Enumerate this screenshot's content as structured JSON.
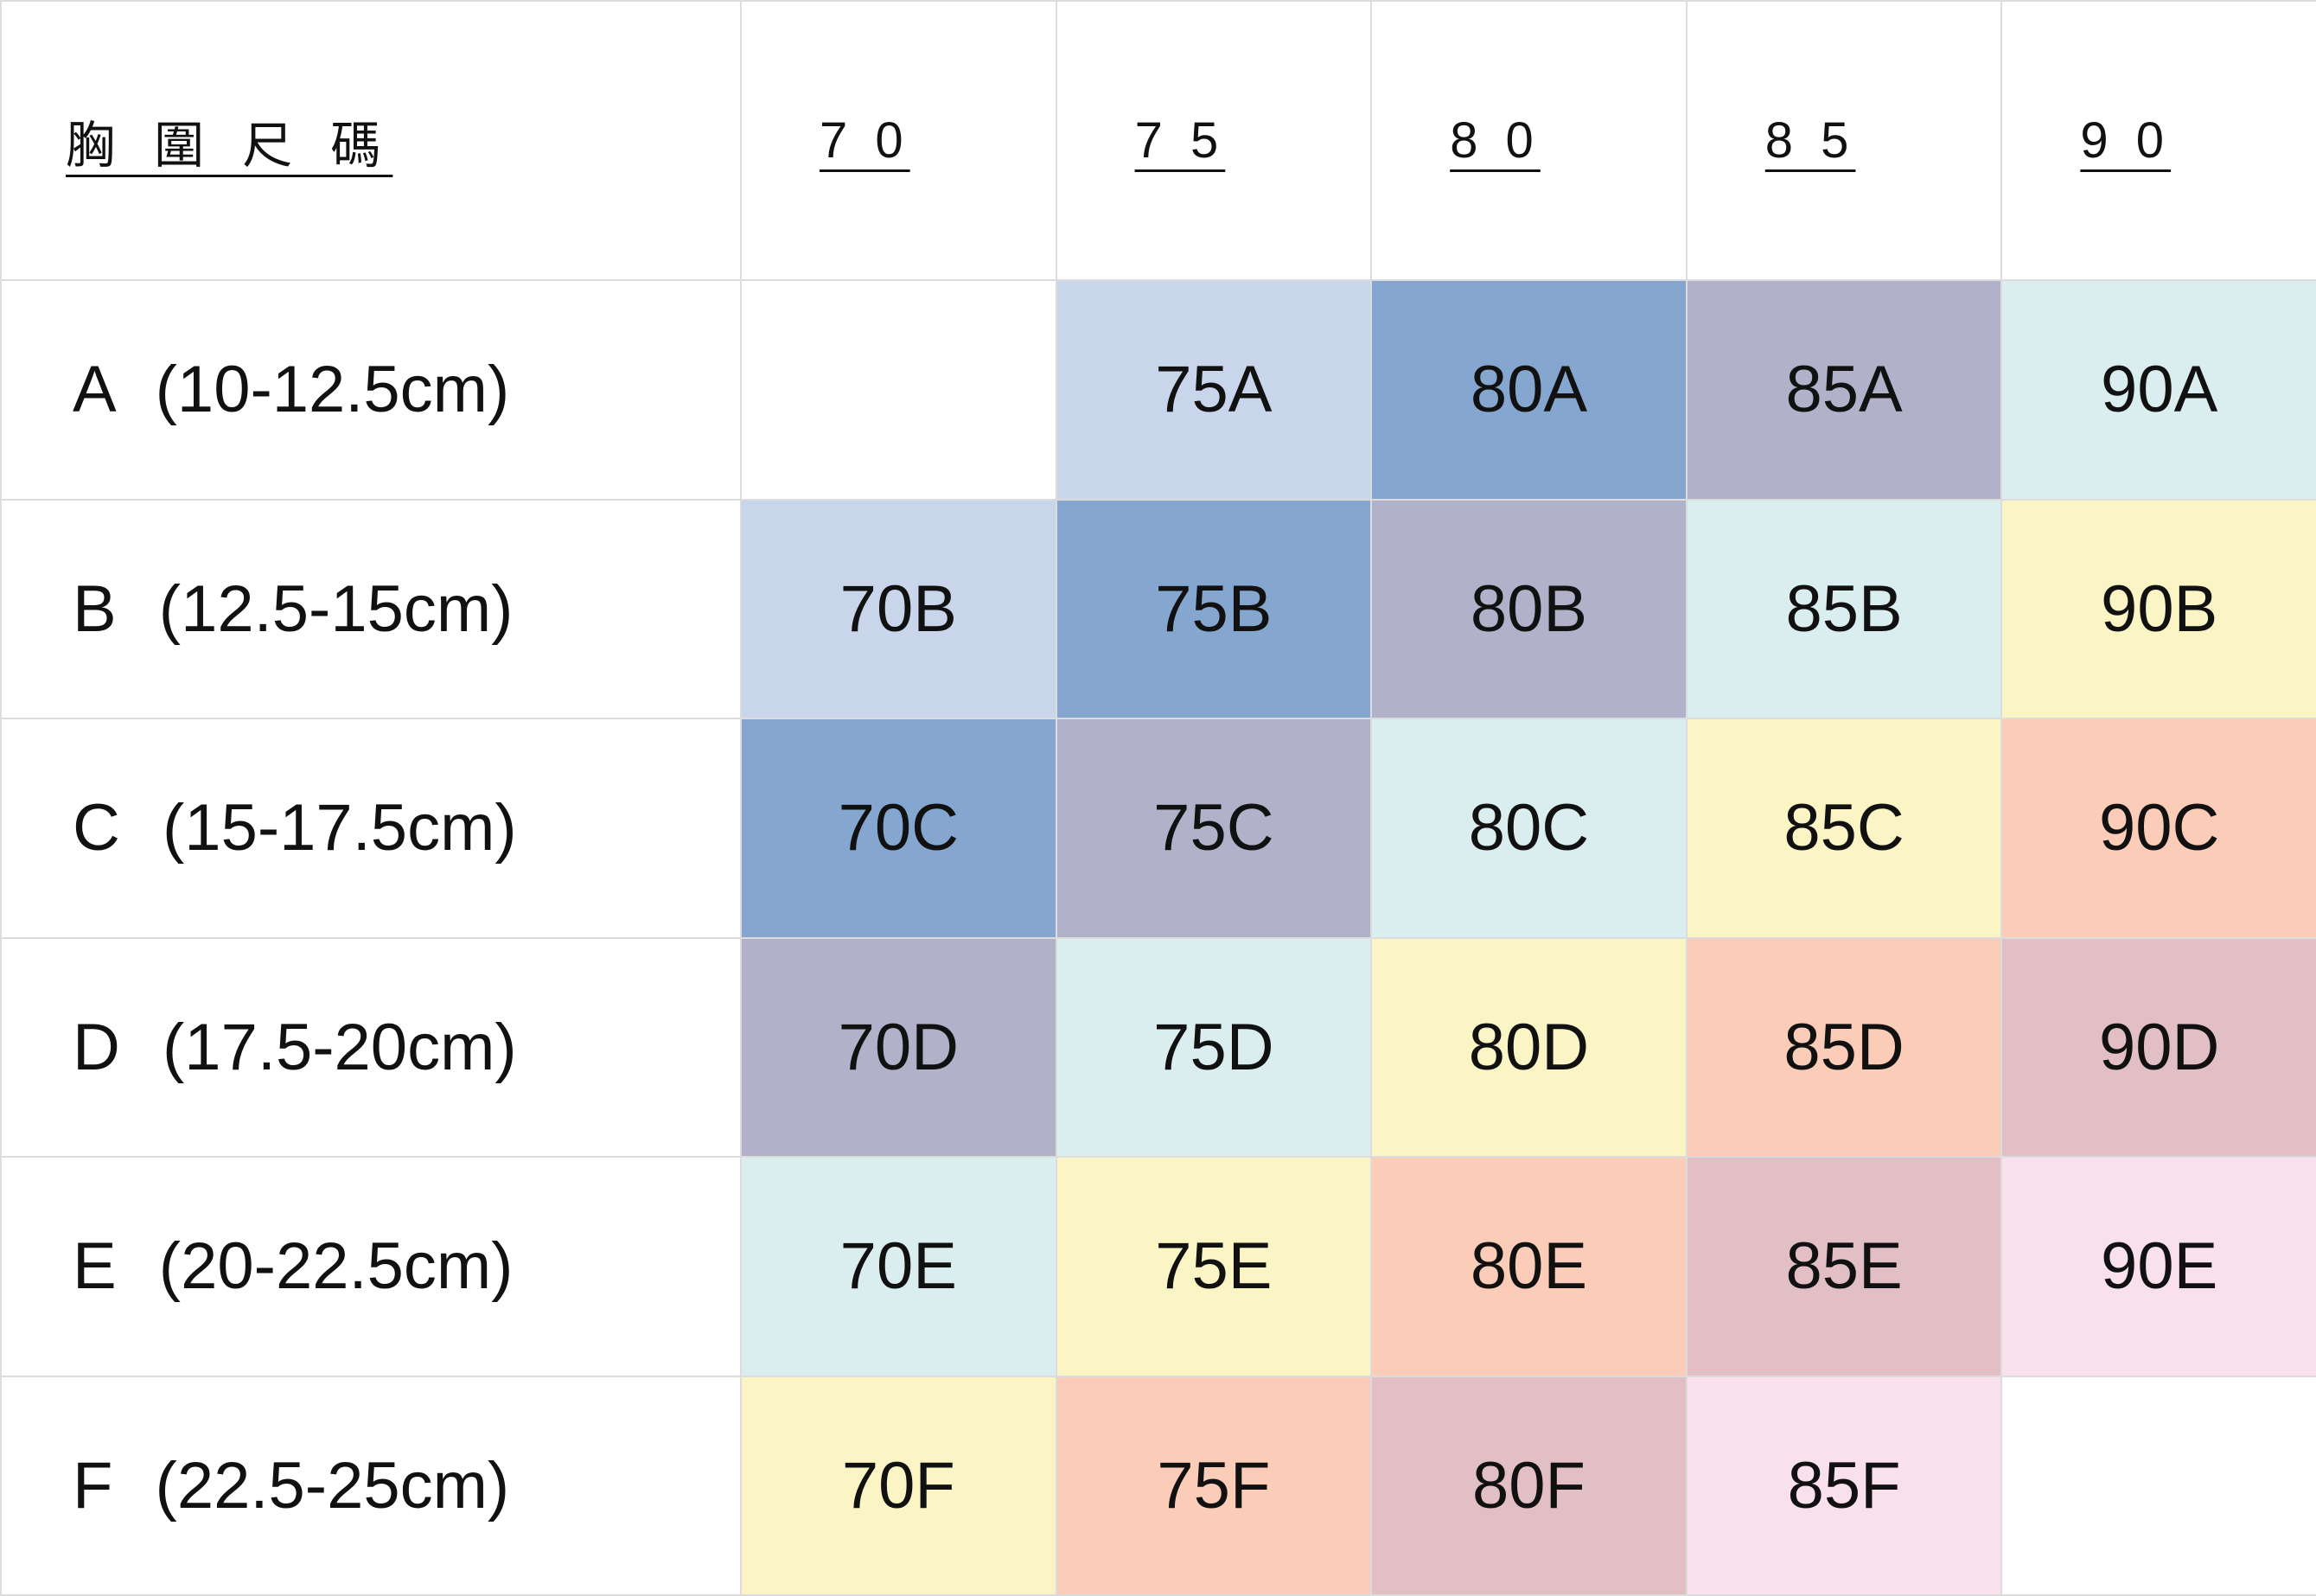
{
  "table": {
    "header": [
      "胸 圍 尺 碼",
      "7 0",
      "7 5",
      "8 0",
      "8 5",
      "9 0"
    ],
    "rows": [
      [
        "A (10-12.5cm)",
        null,
        "75A",
        "80A",
        "85A",
        "90A"
      ],
      [
        "B (12.5-15cm)",
        "70B",
        "75B",
        "80B",
        "85B",
        "90B"
      ],
      [
        "C (15-17.5cm)",
        "70C",
        "75C",
        "80C",
        "85C",
        "90C"
      ],
      [
        "D (17.5-20cm)",
        "70D",
        "75D",
        "80D",
        "85D",
        "90D"
      ],
      [
        "E (20-22.5cm)",
        "70E",
        "75E",
        "80E",
        "85E",
        "90E"
      ],
      [
        "F (22.5-25cm)",
        "70F",
        "75F",
        "80F",
        "85F",
        null
      ]
    ]
  }
}
